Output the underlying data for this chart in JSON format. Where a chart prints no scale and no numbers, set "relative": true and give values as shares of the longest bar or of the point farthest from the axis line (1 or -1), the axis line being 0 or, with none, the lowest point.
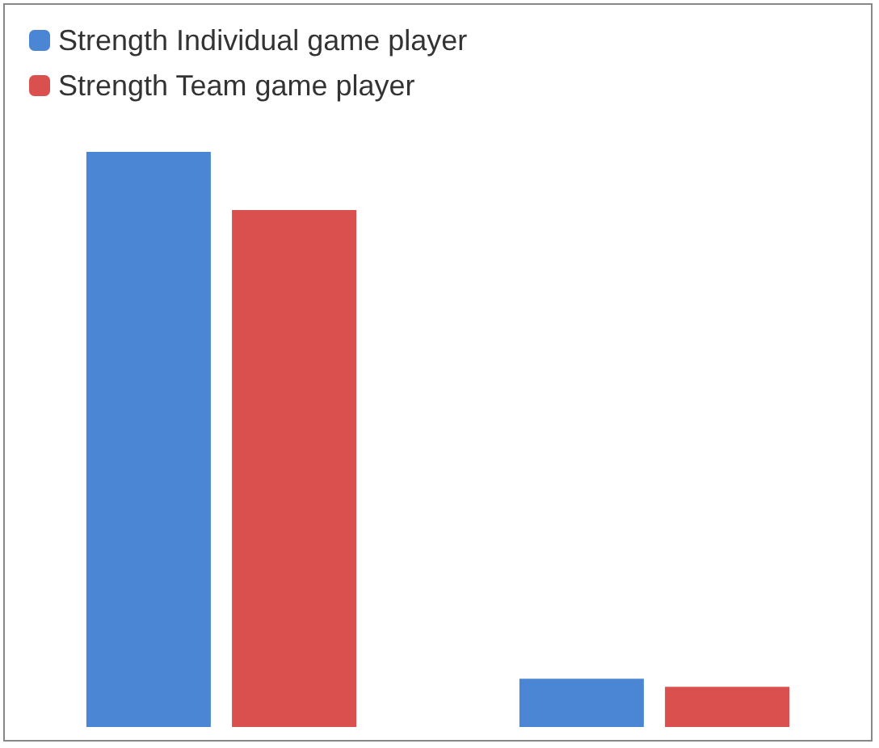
{
  "chart_data": {
    "type": "bar",
    "relative": true,
    "categories": [
      null,
      null
    ],
    "series": [
      {
        "name": "Strength Individual game player",
        "color": "#4a86d4",
        "values": [
          1,
          0.084
        ]
      },
      {
        "name": "Strength Team game player",
        "color": "#d9504f",
        "values": [
          0.899,
          0.07
        ]
      }
    ],
    "legend": "top left"
  }
}
